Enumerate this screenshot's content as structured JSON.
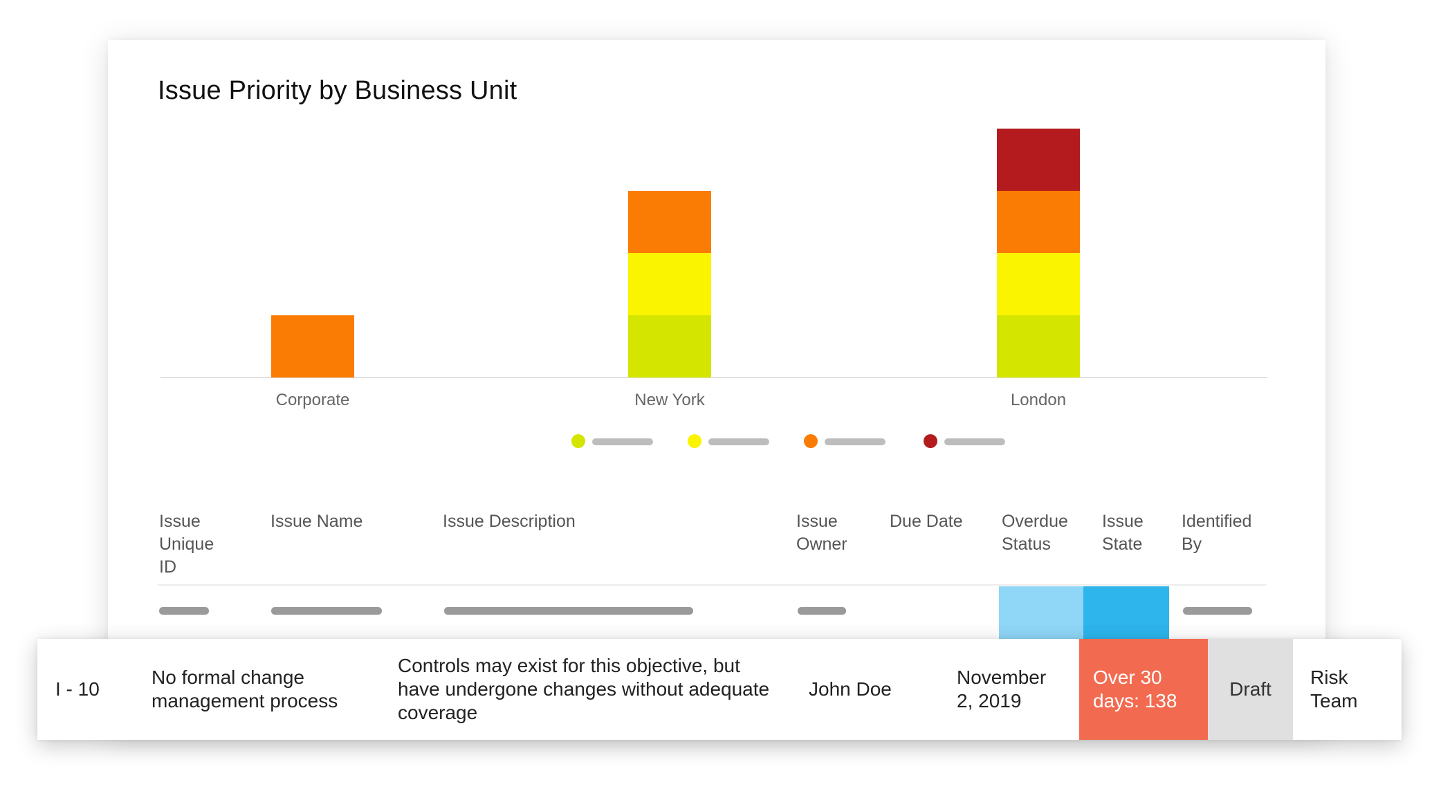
{
  "chart_data": {
    "type": "bar",
    "stacked": true,
    "title": "Issue Priority by Business Unit",
    "categories": [
      "Corporate",
      "New York",
      "London"
    ],
    "series": [
      {
        "color": "#d4e500",
        "values": [
          0,
          1,
          1
        ]
      },
      {
        "color": "#fbf400",
        "values": [
          0,
          1,
          1
        ]
      },
      {
        "color": "#fb7c05",
        "values": [
          1,
          1,
          1
        ]
      },
      {
        "color": "#b31b1e",
        "values": [
          0,
          0,
          1
        ]
      }
    ],
    "ylim": [
      0,
      4
    ],
    "grid": false,
    "legend_position": "bottom"
  },
  "table": {
    "headers": [
      "Issue\nUnique\nID",
      "Issue Name",
      "Issue Description",
      "Issue\nOwner",
      "Due Date",
      "Overdue\nStatus",
      "Issue\nState",
      "Identified\nBy"
    ],
    "placeholder_colors": {
      "overdue": "#8fd6f7",
      "state": "#2db5ec"
    },
    "highlight_row": {
      "id": "I - 10",
      "name": "No formal change management process",
      "description": "Controls may exist for this objective, but have undergone changes without adequate coverage",
      "owner": "John Doe",
      "due_date": "November 2, 2019",
      "overdue_status": "Over 30 days: 138",
      "state": "Draft",
      "identified_by": "Risk Team"
    }
  }
}
